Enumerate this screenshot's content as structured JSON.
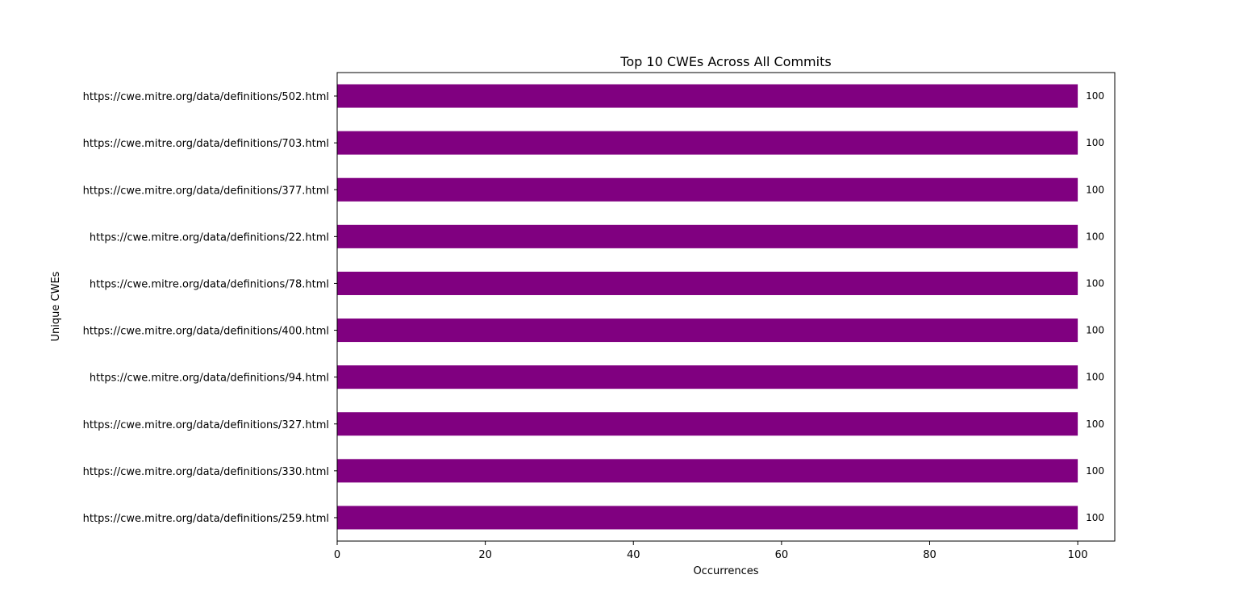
{
  "chart_data": {
    "type": "bar",
    "orientation": "horizontal",
    "title": "Top 10 CWEs Across All Commits",
    "xlabel": "Occurrences",
    "ylabel": "Unique CWEs",
    "xlim": [
      0,
      105
    ],
    "xticks": [
      0,
      20,
      40,
      60,
      80,
      100
    ],
    "categories": [
      "https://cwe.mitre.org/data/definitions/502.html",
      "https://cwe.mitre.org/data/definitions/703.html",
      "https://cwe.mitre.org/data/definitions/377.html",
      "https://cwe.mitre.org/data/definitions/22.html",
      "https://cwe.mitre.org/data/definitions/78.html",
      "https://cwe.mitre.org/data/definitions/400.html",
      "https://cwe.mitre.org/data/definitions/94.html",
      "https://cwe.mitre.org/data/definitions/327.html",
      "https://cwe.mitre.org/data/definitions/330.html",
      "https://cwe.mitre.org/data/definitions/259.html"
    ],
    "values": [
      100,
      100,
      100,
      100,
      100,
      100,
      100,
      100,
      100,
      100
    ],
    "data_labels": [
      "100",
      "100",
      "100",
      "100",
      "100",
      "100",
      "100",
      "100",
      "100",
      "100"
    ],
    "bar_color": "#800080",
    "grid": false,
    "legend": "none"
  }
}
